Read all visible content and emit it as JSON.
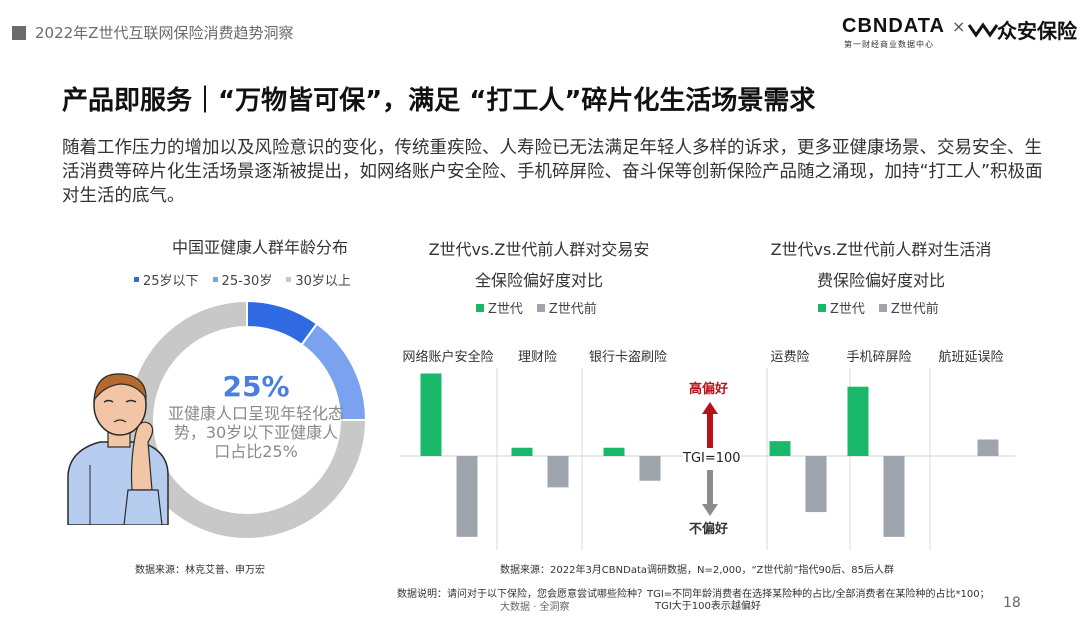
{
  "header": {
    "title": "2022年Z世代互联网保险消费趋势洞察"
  },
  "brand": {
    "cbn": "CBNDATA",
    "sub": "第一财经商业数据中心",
    "x": "×",
    "partner": "众安保险"
  },
  "main_title": "产品即服务｜“万物皆可保”，满足 “打工人”碎片化生活场景需求",
  "intro": "随着工作压力的增加以及风险意识的变化，传统重疾险、人寿险已无法满足年轻人多样的诉求，更多亚健康场景、交易安全、生活消费等碎片化生活场景逐渐被提出，如网络账户安全险、手机碎屏险、奋斗保等创新保险产品随之涌现，加持“打工人”积极面对生活的底气。",
  "colors": {
    "z": "#1ab86b",
    "pre": "#9ea4ab",
    "blue1": "#2f6ae3",
    "blue2": "#7aa2ef",
    "gray": "#c8c8c8",
    "arrow_up": "#b8111b",
    "arrow_down": "#8c8c8c"
  },
  "chart_data": [
    {
      "type": "pie",
      "title": "中国亚健康人群年龄分布",
      "categories": [
        "25岁以下",
        "25-30岁",
        "30岁以上"
      ],
      "values": [
        10,
        15,
        75
      ],
      "center_value": "25%",
      "center_text": "亚健康人口呈现年轻化态势，30岁以下亚健康人口占比25%",
      "source": "数据来源：林克艾普、申万宏"
    },
    {
      "type": "bar",
      "title_lines": [
        "Z世代vs.Z世代前人群对交易安",
        "全保险偏好度对比"
      ],
      "categories": [
        "网络账户安全险",
        "理财险",
        "银行卡盗刷险"
      ],
      "baseline": 100,
      "series": [
        {
          "name": "Z世代",
          "values": [
            150,
            105,
            105
          ]
        },
        {
          "name": "Z世代前",
          "values": [
            51,
            81,
            85
          ]
        }
      ]
    },
    {
      "type": "bar",
      "title_lines": [
        "Z世代vs.Z世代前人群对生活消",
        "费保险偏好度对比"
      ],
      "categories": [
        "运费险",
        "手机碎屏险",
        "航班延误险"
      ],
      "baseline": 100,
      "series": [
        {
          "name": "Z世代",
          "values": [
            109,
            142,
            100
          ]
        },
        {
          "name": "Z世代前",
          "values": [
            66,
            51,
            110
          ]
        }
      ]
    }
  ],
  "axis": {
    "high_label": "高偏好",
    "tgi_label": "TGI=100",
    "low_label": "不偏好"
  },
  "sources": {
    "bar": "数据来源：2022年3月CBNData调研数据，N=2,000，“Z世代前”指代90后、85后人群",
    "note1": "数据说明：请问对于以下保险，您会愿意尝试哪些险种？TGI=不同年龄消费者在选择某险种的占比/全部消费者在某险种的占比*100；",
    "note2": "TGI大于100表示越偏好"
  },
  "footer": {
    "brand": "大数据 · 全洞察",
    "page": "18"
  }
}
